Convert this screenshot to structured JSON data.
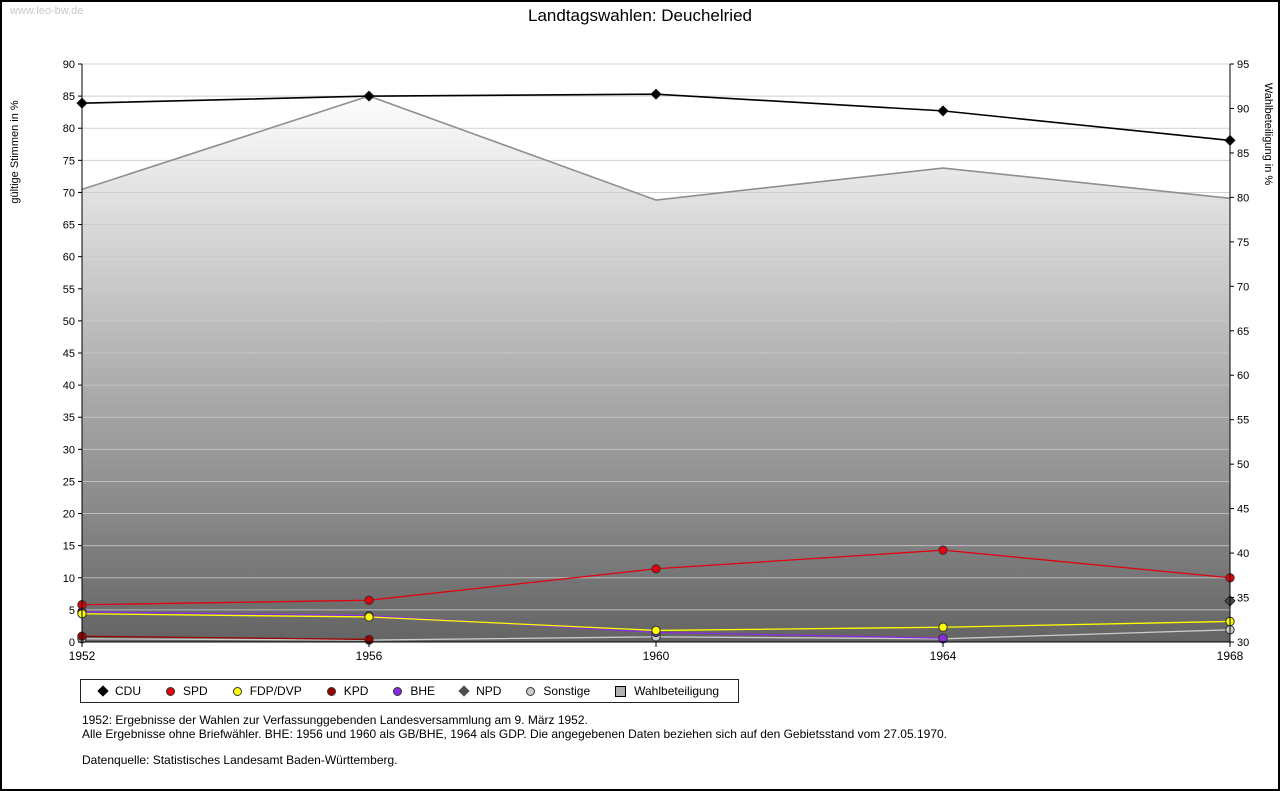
{
  "page": {
    "watermark": "www.leo-bw.de",
    "title": "Landtagswahlen: Deuchelried"
  },
  "chart_data": {
    "type": "line",
    "title": "Landtagswahlen: Deuchelried",
    "x_categories": [
      "1952",
      "1956",
      "1960",
      "1964",
      "1968"
    ],
    "left_axis": {
      "label": "gültige Stimmen in %",
      "min": 0,
      "max": 90,
      "step": 5
    },
    "right_axis": {
      "label": "Wahlbeteiligung in %",
      "min": 30,
      "max": 95,
      "step": 5
    },
    "grid": true,
    "legend_position": "bottom-left",
    "series": [
      {
        "name": "CDU",
        "axis": "left",
        "marker": "diamond",
        "color": "#000000",
        "values": [
          83.9,
          85.0,
          85.3,
          82.7,
          78.1
        ]
      },
      {
        "name": "SPD",
        "axis": "left",
        "marker": "circle",
        "color": "#e3000f",
        "values": [
          5.8,
          6.5,
          11.4,
          14.3,
          10.0
        ]
      },
      {
        "name": "FDP/DVP",
        "axis": "left",
        "marker": "circle",
        "color": "#ffff00",
        "values": [
          4.4,
          3.9,
          1.8,
          2.3,
          3.2
        ]
      },
      {
        "name": "KPD",
        "axis": "left",
        "marker": "circle",
        "color": "#990000",
        "values": [
          0.9,
          0.4,
          null,
          null,
          null
        ]
      },
      {
        "name": "BHE",
        "axis": "left",
        "marker": "circle",
        "color": "#8a2be2",
        "values": [
          4.7,
          4.1,
          1.5,
          0.6,
          null
        ]
      },
      {
        "name": "NPD",
        "axis": "left",
        "marker": "diamond",
        "color": "#4d4d4d",
        "values": [
          null,
          null,
          null,
          null,
          6.4
        ]
      },
      {
        "name": "Sonstige",
        "axis": "left",
        "marker": "circle",
        "color": "#cccccc",
        "values": [
          0.5,
          0.3,
          0.8,
          0.5,
          1.9
        ]
      },
      {
        "name": "Wahlbeteiligung",
        "axis": "right",
        "render": "area",
        "marker": "square",
        "color": "#8f8f8f",
        "fill_gradient": [
          "#ffffff",
          "#646464"
        ],
        "values": [
          80.9,
          91.4,
          79.7,
          83.3,
          79.9
        ]
      }
    ]
  },
  "footnotes": [
    "1952: Ergebnisse der Wahlen zur Verfassunggebenden Landesversammlung am 9. März 1952.",
    "Alle Ergebnisse ohne Briefwähler. BHE: 1956 und 1960 als GB/BHE, 1964 als GDP. Die angegebenen Daten beziehen sich auf den Gebietsstand vom 27.05.1970.",
    "Datenquelle: Statistisches Landesamt Baden-Württemberg."
  ]
}
